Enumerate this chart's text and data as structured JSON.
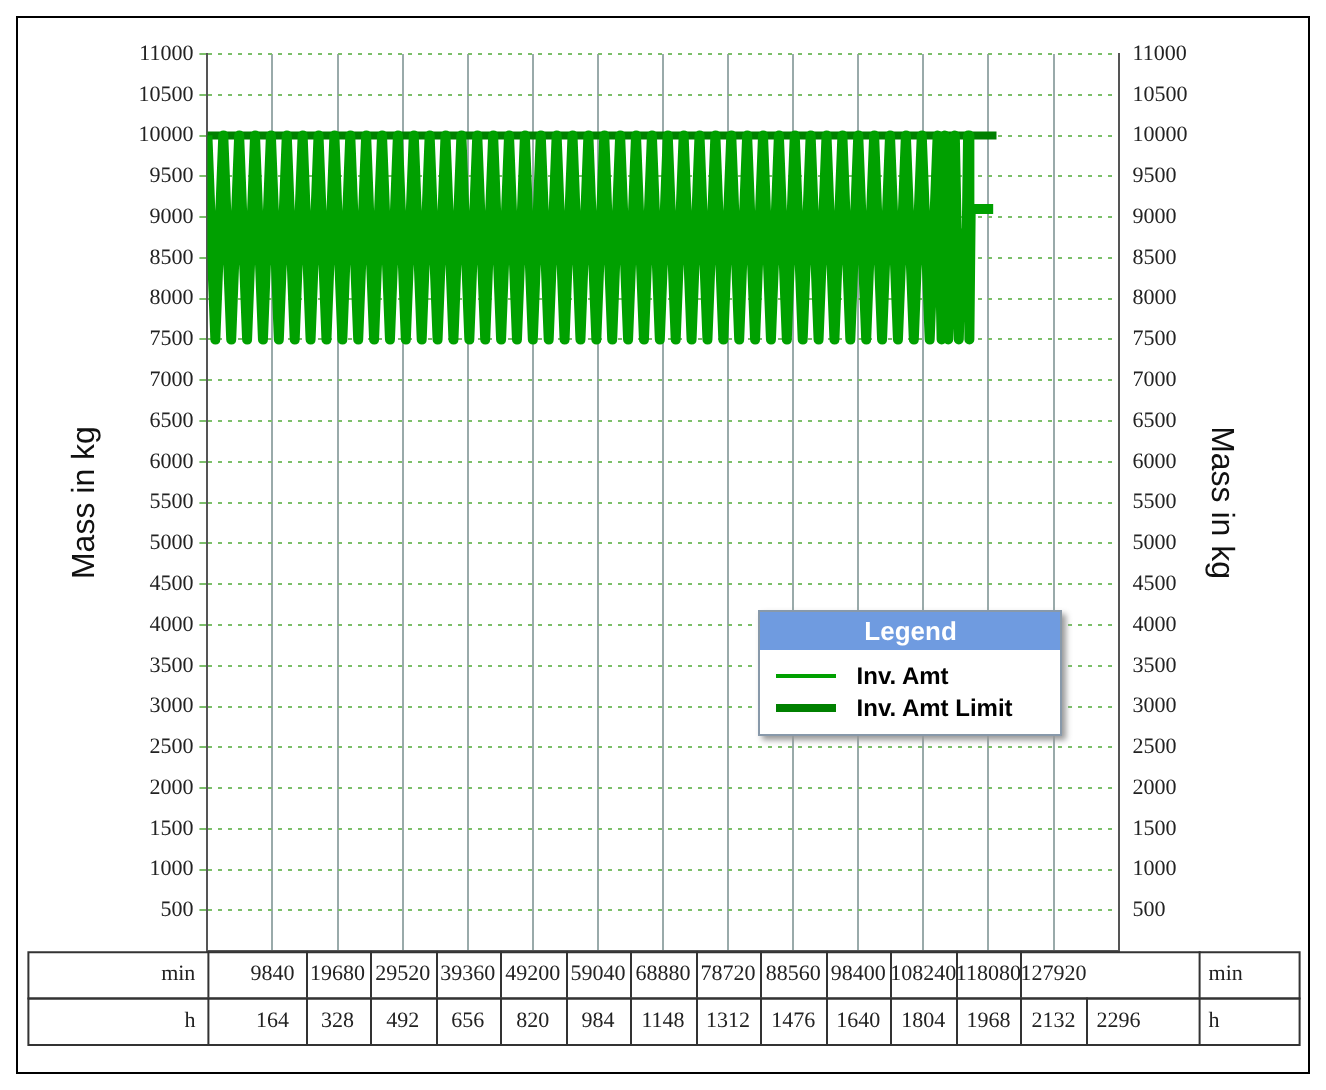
{
  "chart_data": {
    "type": "line",
    "ylabel": "Mass in kg",
    "y2label": "Mass in kg",
    "xlabel": "min",
    "x2label": "h",
    "legend_title": "Legend",
    "legend": "bottom right",
    "grid": true,
    "marker": "none",
    "line_style": "solid",
    "xlim": [
      0,
      137760
    ],
    "xticks": [
      9840,
      19680,
      29520,
      39360,
      49200,
      59040,
      68880,
      78720,
      88560,
      98400,
      108240,
      118080,
      127920
    ],
    "x2lim": [
      0,
      2296
    ],
    "x2ticks": [
      164,
      328,
      492,
      656,
      820,
      984,
      1148,
      1312,
      1476,
      1640,
      1804,
      1968,
      2132,
      2296
    ],
    "ylim": [
      0,
      11000
    ],
    "yticks": [
      500,
      1000,
      1500,
      2000,
      2500,
      3000,
      3500,
      4000,
      4500,
      5000,
      5500,
      6000,
      6500,
      7000,
      7500,
      8000,
      8500,
      9000,
      9500,
      10000,
      10500,
      11000
    ],
    "y2lim": [
      0,
      11000
    ],
    "y2ticks": [
      500,
      1000,
      1500,
      2000,
      2500,
      3000,
      3500,
      4000,
      4500,
      5000,
      5500,
      6000,
      6500,
      7000,
      7500,
      8000,
      8500,
      9000,
      9500,
      10000,
      10500,
      11000
    ],
    "series": [
      {
        "name": "Inv. Amt",
        "color": "#00a000",
        "x": [
          0,
          1200,
          2400,
          3600,
          4800,
          6000,
          7200,
          8400,
          9600,
          10800,
          12000,
          13200,
          14400,
          15600,
          16800,
          18000,
          19200,
          20400,
          21600,
          22800,
          24000,
          25200,
          26400,
          27600,
          28800,
          30000,
          31200,
          32400,
          33600,
          34800,
          36000,
          37200,
          38400,
          39600,
          40800,
          42000,
          43200,
          44400,
          45600,
          46800,
          48000,
          49200,
          50400,
          51600,
          52800,
          54000,
          55200,
          56400,
          57600,
          58800,
          60000,
          61200,
          62400,
          63600,
          64800,
          66000,
          67200,
          68400,
          69600,
          70800,
          72000,
          73200,
          74400,
          75600,
          76800,
          78000,
          79200,
          80400,
          81600,
          82800,
          84000,
          85200,
          86400,
          87600,
          88800,
          90000,
          91200,
          92400,
          93600,
          94800,
          96000,
          97200,
          98400,
          99600,
          100800,
          102000,
          103200,
          104400,
          105600,
          106800,
          108000,
          109200,
          110400,
          111000,
          111500,
          112000,
          113000,
          113600,
          114000,
          114800,
          115000,
          115200,
          115400,
          118800
        ],
        "values": [
          10000,
          7500,
          10000,
          7500,
          10000,
          7500,
          10000,
          7500,
          10000,
          7500,
          10000,
          7500,
          10000,
          7500,
          10000,
          7500,
          10000,
          7500,
          10000,
          7500,
          10000,
          7500,
          10000,
          7500,
          10000,
          7500,
          10000,
          7500,
          10000,
          7500,
          10000,
          7500,
          10000,
          7500,
          10000,
          7500,
          10000,
          7500,
          10000,
          7500,
          10000,
          7500,
          10000,
          7500,
          10000,
          7500,
          10000,
          7500,
          10000,
          7500,
          10000,
          7500,
          10000,
          7500,
          10000,
          7500,
          10000,
          7500,
          10000,
          7500,
          10000,
          7500,
          10000,
          7500,
          10000,
          7500,
          10000,
          7500,
          10000,
          7500,
          10000,
          7500,
          10000,
          7500,
          10000,
          7500,
          10000,
          7500,
          10000,
          7500,
          10000,
          7500,
          10000,
          7500,
          10000,
          7500,
          10000,
          7500,
          10000,
          7500,
          10000,
          7500,
          10000,
          7500,
          10000,
          7500,
          10000,
          7500,
          8800,
          8800,
          10000,
          7500,
          9100,
          9100
        ]
      },
      {
        "name": "Inv. Amt Limit",
        "color": "#008000",
        "x": [
          0,
          119300
        ],
        "values": [
          10000,
          10000
        ]
      }
    ]
  }
}
